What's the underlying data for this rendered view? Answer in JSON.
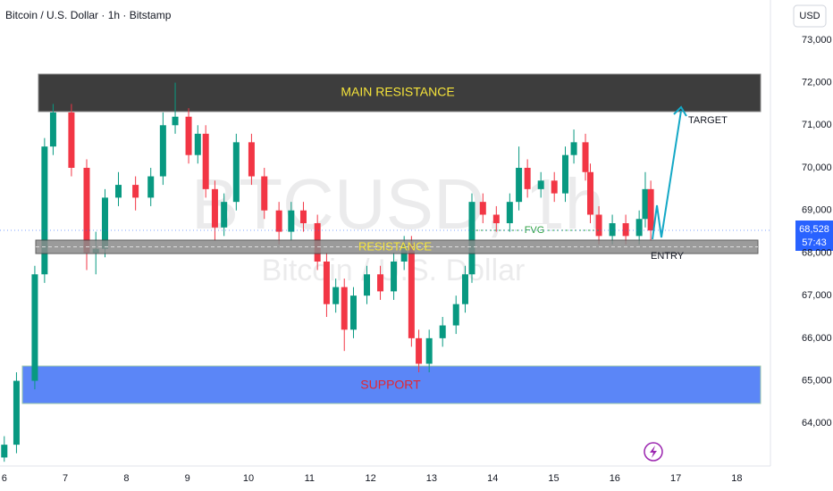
{
  "chart_data": {
    "type": "candlestick",
    "title": "Bitcoin / U.S. Dollar · 1h · Bitstamp",
    "currency": "USD",
    "watermark": "BTCUSD, 1h",
    "watermark_subtitle": "Bitcoin / U.S. Dollar",
    "last_price_label": "68,528",
    "countdown": "57:43",
    "annotations": {
      "main_resistance": "MAIN RESISTANCE",
      "resistance": "RESISTANCE",
      "support": "SUPPORT",
      "fvg": "FVG",
      "target": "TARGET",
      "entry": "ENTRY"
    },
    "up_color": "#089981",
    "down_color": "#f23645",
    "x": [
      6.0,
      6.2,
      6.5,
      6.66,
      6.8,
      7.1,
      7.35,
      7.5,
      7.65,
      7.87,
      8.15,
      8.4,
      8.6,
      8.8,
      9.02,
      9.17,
      9.3,
      9.45,
      9.6,
      9.8,
      10.05,
      10.26,
      10.5,
      10.7,
      10.9,
      11.13,
      11.28,
      11.43,
      11.57,
      11.72,
      11.94,
      12.16,
      12.38,
      12.55,
      12.67,
      12.79,
      12.96,
      13.18,
      13.4,
      13.55,
      13.66,
      13.84,
      14.06,
      14.28,
      14.43,
      14.57,
      14.79,
      15.01,
      15.19,
      15.33,
      15.52,
      15.6,
      15.74,
      15.96,
      16.18,
      16.4,
      16.5,
      16.59
    ],
    "open": [
      63200,
      63500,
      65000,
      67500,
      70500,
      71300,
      70000,
      68000,
      68100,
      69300,
      69600,
      69300,
      69800,
      71000,
      71200,
      70300,
      70800,
      69500,
      68600,
      69200,
      70600,
      69800,
      69000,
      68500,
      69000,
      68700,
      67800,
      66800,
      67200,
      66200,
      67000,
      67500,
      67100,
      67800,
      68200,
      66000,
      65400,
      66000,
      66300,
      66800,
      67500,
      69200,
      68900,
      68700,
      69200,
      70000,
      69500,
      69700,
      69400,
      70300,
      70600,
      69900,
      68900,
      68400,
      68700,
      68400,
      68800,
      69500
    ],
    "high": [
      63700,
      65200,
      67700,
      70700,
      71500,
      71500,
      70200,
      68500,
      69500,
      69900,
      69800,
      70000,
      71300,
      72000,
      71400,
      71000,
      71000,
      69700,
      69400,
      70800,
      70800,
      70000,
      69200,
      69200,
      69200,
      68900,
      68000,
      67400,
      67400,
      67200,
      67700,
      67700,
      68000,
      68400,
      68400,
      66200,
      66200,
      66500,
      67000,
      67700,
      69400,
      69400,
      69100,
      69400,
      70500,
      70200,
      69900,
      69900,
      70500,
      70900,
      70800,
      70100,
      69100,
      68900,
      68900,
      69000,
      69900,
      69700
    ],
    "low": [
      63100,
      63300,
      64800,
      67300,
      70300,
      69800,
      67600,
      67500,
      67900,
      69100,
      69000,
      69100,
      69600,
      70800,
      70100,
      70100,
      69300,
      68300,
      68400,
      69000,
      69600,
      68800,
      68200,
      68300,
      68500,
      67600,
      66500,
      66600,
      65700,
      66000,
      66800,
      66900,
      66900,
      67600,
      65800,
      65200,
      65200,
      65800,
      66100,
      66600,
      67300,
      68700,
      68500,
      68500,
      69000,
      69300,
      69300,
      69200,
      69200,
      70100,
      69700,
      68700,
      68200,
      68200,
      68200,
      68200,
      68600,
      68300
    ],
    "close": [
      63500,
      65000,
      67500,
      70500,
      71300,
      70000,
      68000,
      68100,
      69300,
      69600,
      69300,
      69800,
      71000,
      71200,
      70300,
      70800,
      69500,
      68600,
      69200,
      70600,
      69800,
      69000,
      68500,
      69000,
      68700,
      67800,
      66800,
      67200,
      66200,
      67000,
      67500,
      67100,
      67800,
      68200,
      66000,
      65400,
      66000,
      66300,
      66800,
      67500,
      69200,
      68900,
      68700,
      69200,
      70000,
      69500,
      69700,
      69400,
      70300,
      70600,
      69900,
      68900,
      68400,
      68700,
      68400,
      68800,
      69500,
      68528
    ],
    "xlim": [
      5.93,
      18.55
    ],
    "xticks": [
      6,
      7,
      8,
      9,
      10,
      11,
      12,
      13,
      14,
      15,
      16,
      17,
      18
    ],
    "ylim": [
      63000,
      73940
    ],
    "yticks": [
      {
        "value": 64000,
        "label": "64,000"
      },
      {
        "value": 65000,
        "label": "65,000"
      },
      {
        "value": 66000,
        "label": "66,000"
      },
      {
        "value": 67000,
        "label": "67,000"
      },
      {
        "value": 68000,
        "label": "68,000"
      },
      {
        "value": 69000,
        "label": "69,000"
      },
      {
        "value": 70000,
        "label": "70,000"
      },
      {
        "value": 71000,
        "label": "71,000"
      },
      {
        "value": 72000,
        "label": "72,000"
      },
      {
        "value": 73000,
        "label": "73,000"
      }
    ]
  }
}
